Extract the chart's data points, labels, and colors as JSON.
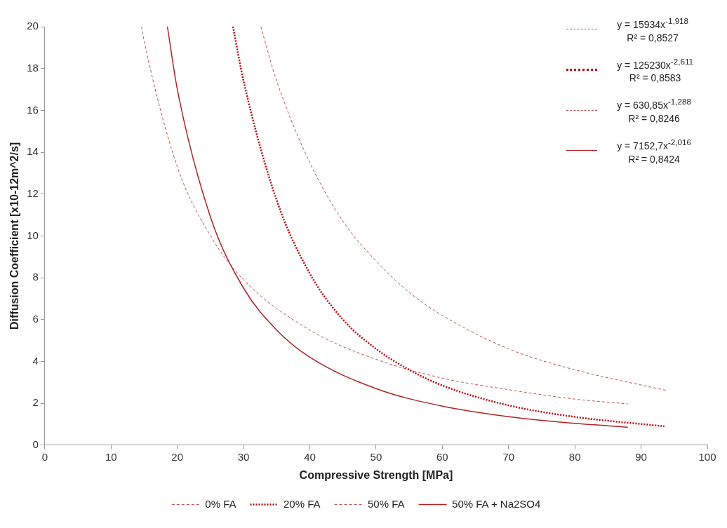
{
  "chart_data": {
    "type": "line",
    "xlabel": "Compressive Strength [MPa]",
    "ylabel": "Diffusion Coefficient [x10-12m^2/s]",
    "xlim": [
      0,
      100
    ],
    "xticks": [
      0,
      10,
      20,
      30,
      40,
      50,
      60,
      70,
      80,
      90,
      100
    ],
    "ylim": [
      0,
      20
    ],
    "yticks": [
      0,
      2,
      4,
      6,
      8,
      10,
      12,
      14,
      16,
      18,
      20
    ],
    "grid": false,
    "legend": "bottom",
    "marker": "none",
    "annotations": [
      "y = 15934x$^{-1,918}$",
      "R² = 0,8527",
      "y = 125230x$^{-2,611}$",
      "R² = 0,8583",
      "y = 630,85x$^{-1,288}$",
      "R² = 0,8246",
      "y = 7152,7x$^{-2,016}$",
      "R² = 0,8424"
    ],
    "series": [
      {
        "name": "0% FA",
        "color": "#c0504d",
        "line_style": "dashed",
        "x": [
          32.6,
          35,
          40,
          45,
          50,
          55,
          60,
          70,
          80,
          94
        ],
        "values": [
          20,
          17.4,
          13.5,
          10.7,
          8.8,
          7.3,
          6.2,
          4.6,
          3.6,
          2.6
        ]
      },
      {
        "name": "20% FA",
        "color": "#c00000",
        "line_style": "dotted",
        "x": [
          28.4,
          30,
          35,
          40,
          45,
          50,
          55,
          60,
          70,
          80,
          93.5
        ],
        "values": [
          20,
          17.4,
          11.7,
          8.2,
          6.0,
          4.6,
          3.6,
          2.85,
          1.9,
          1.35,
          0.9
        ]
      },
      {
        "name": "50% FA",
        "color": "#c0504d",
        "line_style": "dashed",
        "x": [
          14.6,
          15,
          20,
          25,
          30,
          40,
          50,
          60,
          70,
          80,
          88
        ],
        "values": [
          20,
          19.3,
          13.3,
          10.0,
          7.9,
          5.5,
          4.1,
          3.2,
          2.65,
          2.2,
          1.97
        ]
      },
      {
        "name": "50% FA + Na2SO4",
        "color": "#b22222",
        "line_style": "solid",
        "x": [
          18.5,
          20,
          25,
          30,
          35,
          40,
          50,
          60,
          70,
          80,
          88
        ],
        "values": [
          20,
          17.0,
          10.9,
          7.5,
          5.5,
          4.2,
          2.7,
          1.86,
          1.36,
          1.04,
          0.86
        ]
      }
    ]
  }
}
